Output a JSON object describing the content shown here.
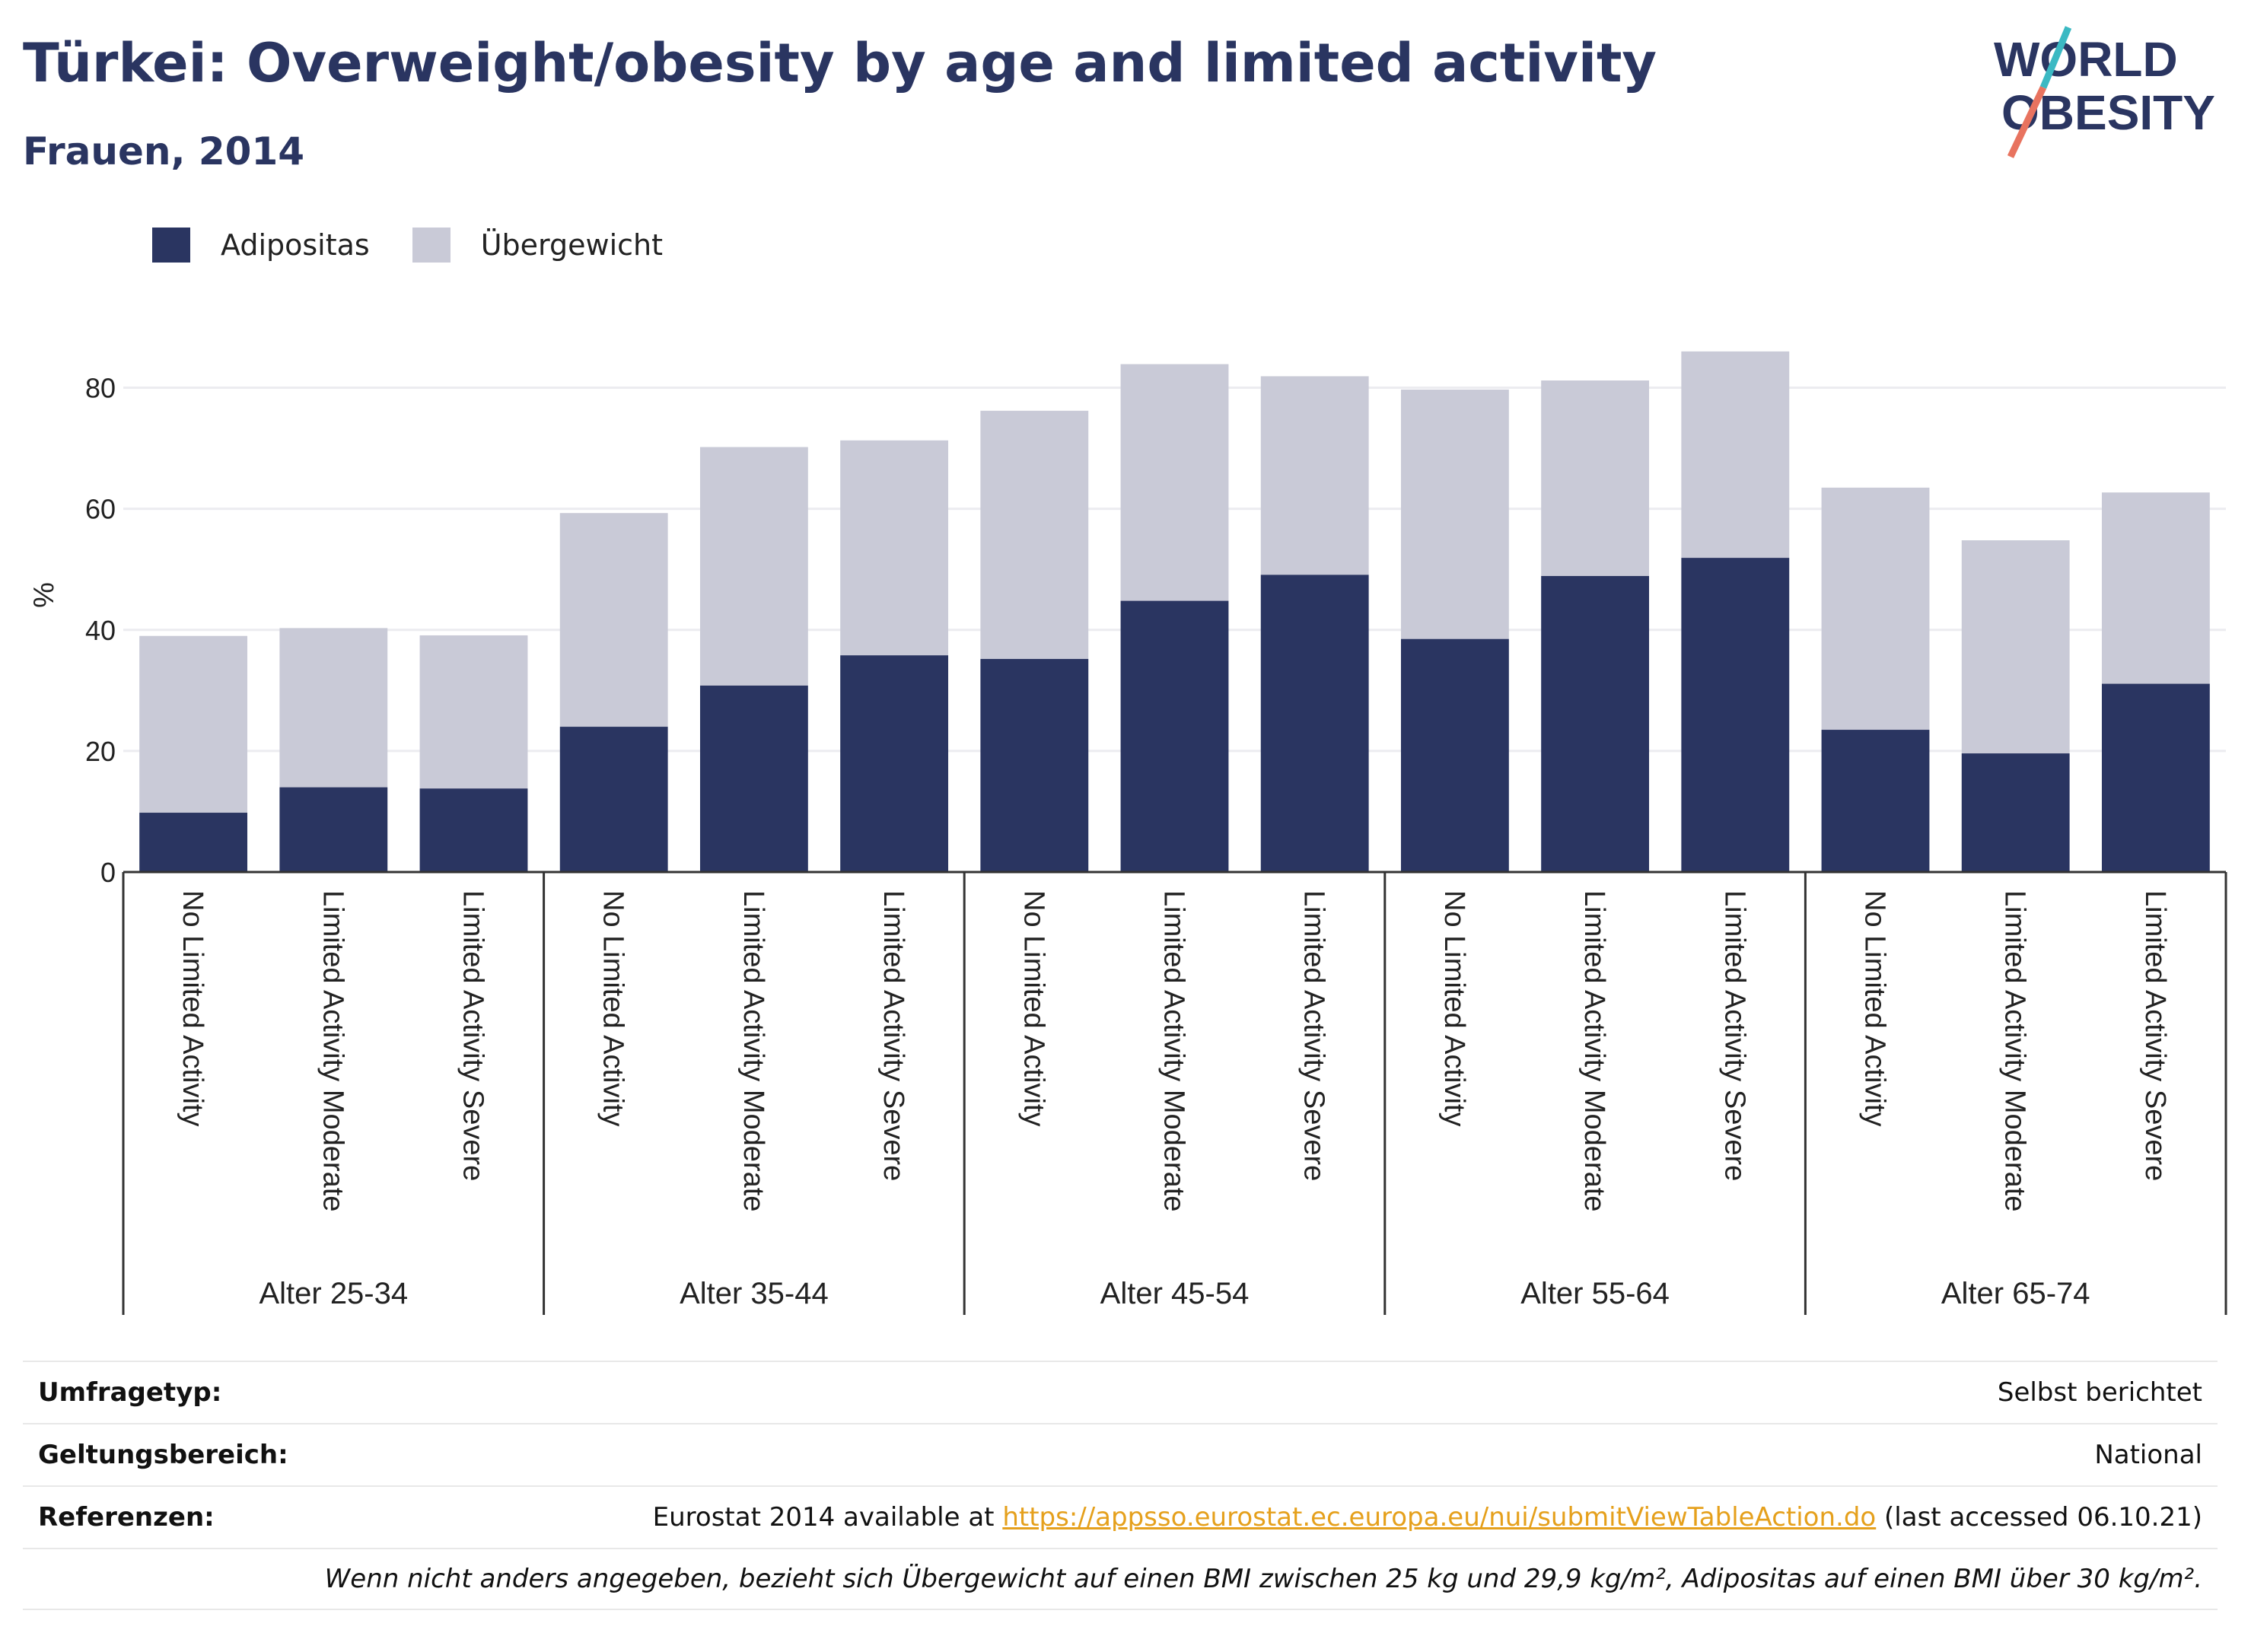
{
  "header": {
    "title": "Türkei: Overweight/obesity by age and limited activity",
    "subtitle": "Frauen, 2014"
  },
  "logo": {
    "line1": "WORLD",
    "line2": "OBESITY",
    "accent_teal": "#3bb9c3",
    "accent_red": "#e8735f"
  },
  "legend": {
    "items": [
      {
        "label": "Adipositas",
        "color": "#2a3561"
      },
      {
        "label": "Übergewicht",
        "color": "#c9cad7"
      }
    ]
  },
  "chart_data": {
    "type": "bar",
    "stacked": true,
    "ylabel": "%",
    "ylim": [
      0,
      90
    ],
    "yticks": [
      0,
      20,
      40,
      60,
      80
    ],
    "grid": true,
    "legend_position": "top-left",
    "groups": [
      {
        "label": "Alter 25-34",
        "categories": [
          "No Limited Activity",
          "Limited Activity Moderate",
          "Limited Activity Severe"
        ]
      },
      {
        "label": "Alter 35-44",
        "categories": [
          "No Limited Activity",
          "Limited Activity Moderate",
          "Limited Activity Severe"
        ]
      },
      {
        "label": "Alter 45-54",
        "categories": [
          "No Limited Activity",
          "Limited Activity Moderate",
          "Limited Activity Severe"
        ]
      },
      {
        "label": "Alter 55-64",
        "categories": [
          "No Limited Activity",
          "Limited Activity Moderate",
          "Limited Activity Severe"
        ]
      },
      {
        "label": "Alter 65-74",
        "categories": [
          "No Limited Activity",
          "Limited Activity Moderate",
          "Limited Activity Severe"
        ]
      }
    ],
    "series": [
      {
        "name": "Adipositas",
        "color": "#2a3561",
        "values": [
          9.8,
          14.0,
          13.8,
          24.0,
          30.8,
          35.8,
          35.2,
          44.8,
          49.1,
          38.5,
          48.9,
          51.9,
          23.5,
          19.6,
          31.1
        ]
      },
      {
        "name": "Übergewicht",
        "color": "#c9cad7",
        "values": [
          29.2,
          26.3,
          25.3,
          35.3,
          39.4,
          35.5,
          41.0,
          39.1,
          32.8,
          41.2,
          32.3,
          34.1,
          40.0,
          35.2,
          31.6
        ]
      }
    ]
  },
  "meta": {
    "survey_type": {
      "label": "Umfragetyp:",
      "value": "Selbst berichtet"
    },
    "scope": {
      "label": "Geltungsbereich:",
      "value": "National"
    },
    "references": {
      "label": "Referenzen:",
      "prefix": "Eurostat 2014 available at ",
      "link": "https://appsso.eurostat.ec.europa.eu/nui/submitViewTableAction.do",
      "suffix": " (last accessed 06.10.21)"
    },
    "note": "Wenn nicht anders angegeben, bezieht sich Übergewicht auf einen BMI zwischen 25 kg und 29,9 kg/m², Adipositas auf einen BMI über 30 kg/m²."
  }
}
